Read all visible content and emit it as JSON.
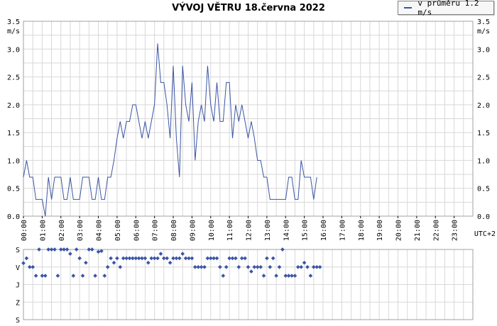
{
  "title": "VÝVOJ VĚTRU  18.června 2022",
  "legend": {
    "label": "v průměru 1.2 m/s",
    "color": "#3a55a5"
  },
  "colors": {
    "line": "#3a55a5",
    "grid": "#d8d8d8",
    "axis": "#000000"
  },
  "chart_data": [
    {
      "type": "line",
      "title": "",
      "ylabel": "m/s",
      "xlabel": "UTC+2",
      "ylim": [
        0,
        3.5
      ],
      "yticks": [
        "0.0",
        "0.5",
        "1.0",
        "1.5",
        "2.0",
        "2.5",
        "3.0",
        "3.5"
      ],
      "xticks": [
        "00:00",
        "01:00",
        "02:00",
        "03:00",
        "04:00",
        "05:00",
        "06:00",
        "07:00",
        "08:00",
        "09:00",
        "10:00",
        "11:00",
        "12:00",
        "13:00",
        "14:00",
        "15:00",
        "16:00",
        "17:00",
        "18:00",
        "19:00",
        "20:00",
        "21:00",
        "22:00",
        "23:00"
      ],
      "grid": true,
      "series": [
        {
          "name": "v průměru 1.2 m/s",
          "interval_minutes": 10,
          "values": [
            0.7,
            1.0,
            0.7,
            0.7,
            0.3,
            0.3,
            0.3,
            0.0,
            0.7,
            0.3,
            0.7,
            0.7,
            0.7,
            0.3,
            0.3,
            0.7,
            0.3,
            0.3,
            0.3,
            0.7,
            0.7,
            0.7,
            0.3,
            0.3,
            0.7,
            0.3,
            0.3,
            0.7,
            0.7,
            1.0,
            1.4,
            1.7,
            1.4,
            1.7,
            1.7,
            2.0,
            2.0,
            1.7,
            1.4,
            1.7,
            1.4,
            1.7,
            2.0,
            3.1,
            2.4,
            2.4,
            2.0,
            1.4,
            2.7,
            1.4,
            0.7,
            2.7,
            2.0,
            1.7,
            2.4,
            1.0,
            1.7,
            2.0,
            1.7,
            2.7,
            2.0,
            1.7,
            2.4,
            1.7,
            1.7,
            2.4,
            2.4,
            1.4,
            2.0,
            1.7,
            2.0,
            1.7,
            1.4,
            1.7,
            1.4,
            1.0,
            1.0,
            0.7,
            0.7,
            0.3,
            0.3,
            0.3,
            0.3,
            0.3,
            0.3,
            0.7,
            0.7,
            0.3,
            0.3,
            1.0,
            0.7,
            0.7,
            0.7,
            0.3,
            0.7
          ]
        }
      ]
    },
    {
      "type": "scatter",
      "title": "",
      "ylabel": "",
      "xlabel": "",
      "yticks": [
        "S",
        "V",
        "J",
        "Z",
        "S"
      ],
      "ylim": [
        0,
        360
      ],
      "grid": true,
      "series": [
        {
          "name": "",
          "interval_minutes": 10,
          "values": [
            290,
            315,
            270,
            270,
            225,
            360,
            225,
            225,
            360,
            360,
            360,
            225,
            360,
            360,
            360,
            338,
            225,
            360,
            315,
            225,
            292,
            360,
            360,
            225,
            348,
            352,
            225,
            270,
            315,
            292,
            315,
            270,
            315,
            315,
            315,
            315,
            315,
            315,
            315,
            315,
            292,
            315,
            315,
            315,
            338,
            315,
            315,
            292,
            315,
            315,
            315,
            338,
            315,
            315,
            315,
            270,
            270,
            270,
            270,
            315,
            315,
            315,
            315,
            270,
            225,
            270,
            315,
            315,
            315,
            270,
            315,
            315,
            270,
            247,
            270,
            270,
            270,
            225,
            315,
            270,
            315,
            225,
            270,
            360,
            225,
            225,
            225,
            225,
            270,
            270,
            292,
            270,
            225,
            270,
            270,
            270
          ]
        }
      ]
    }
  ]
}
